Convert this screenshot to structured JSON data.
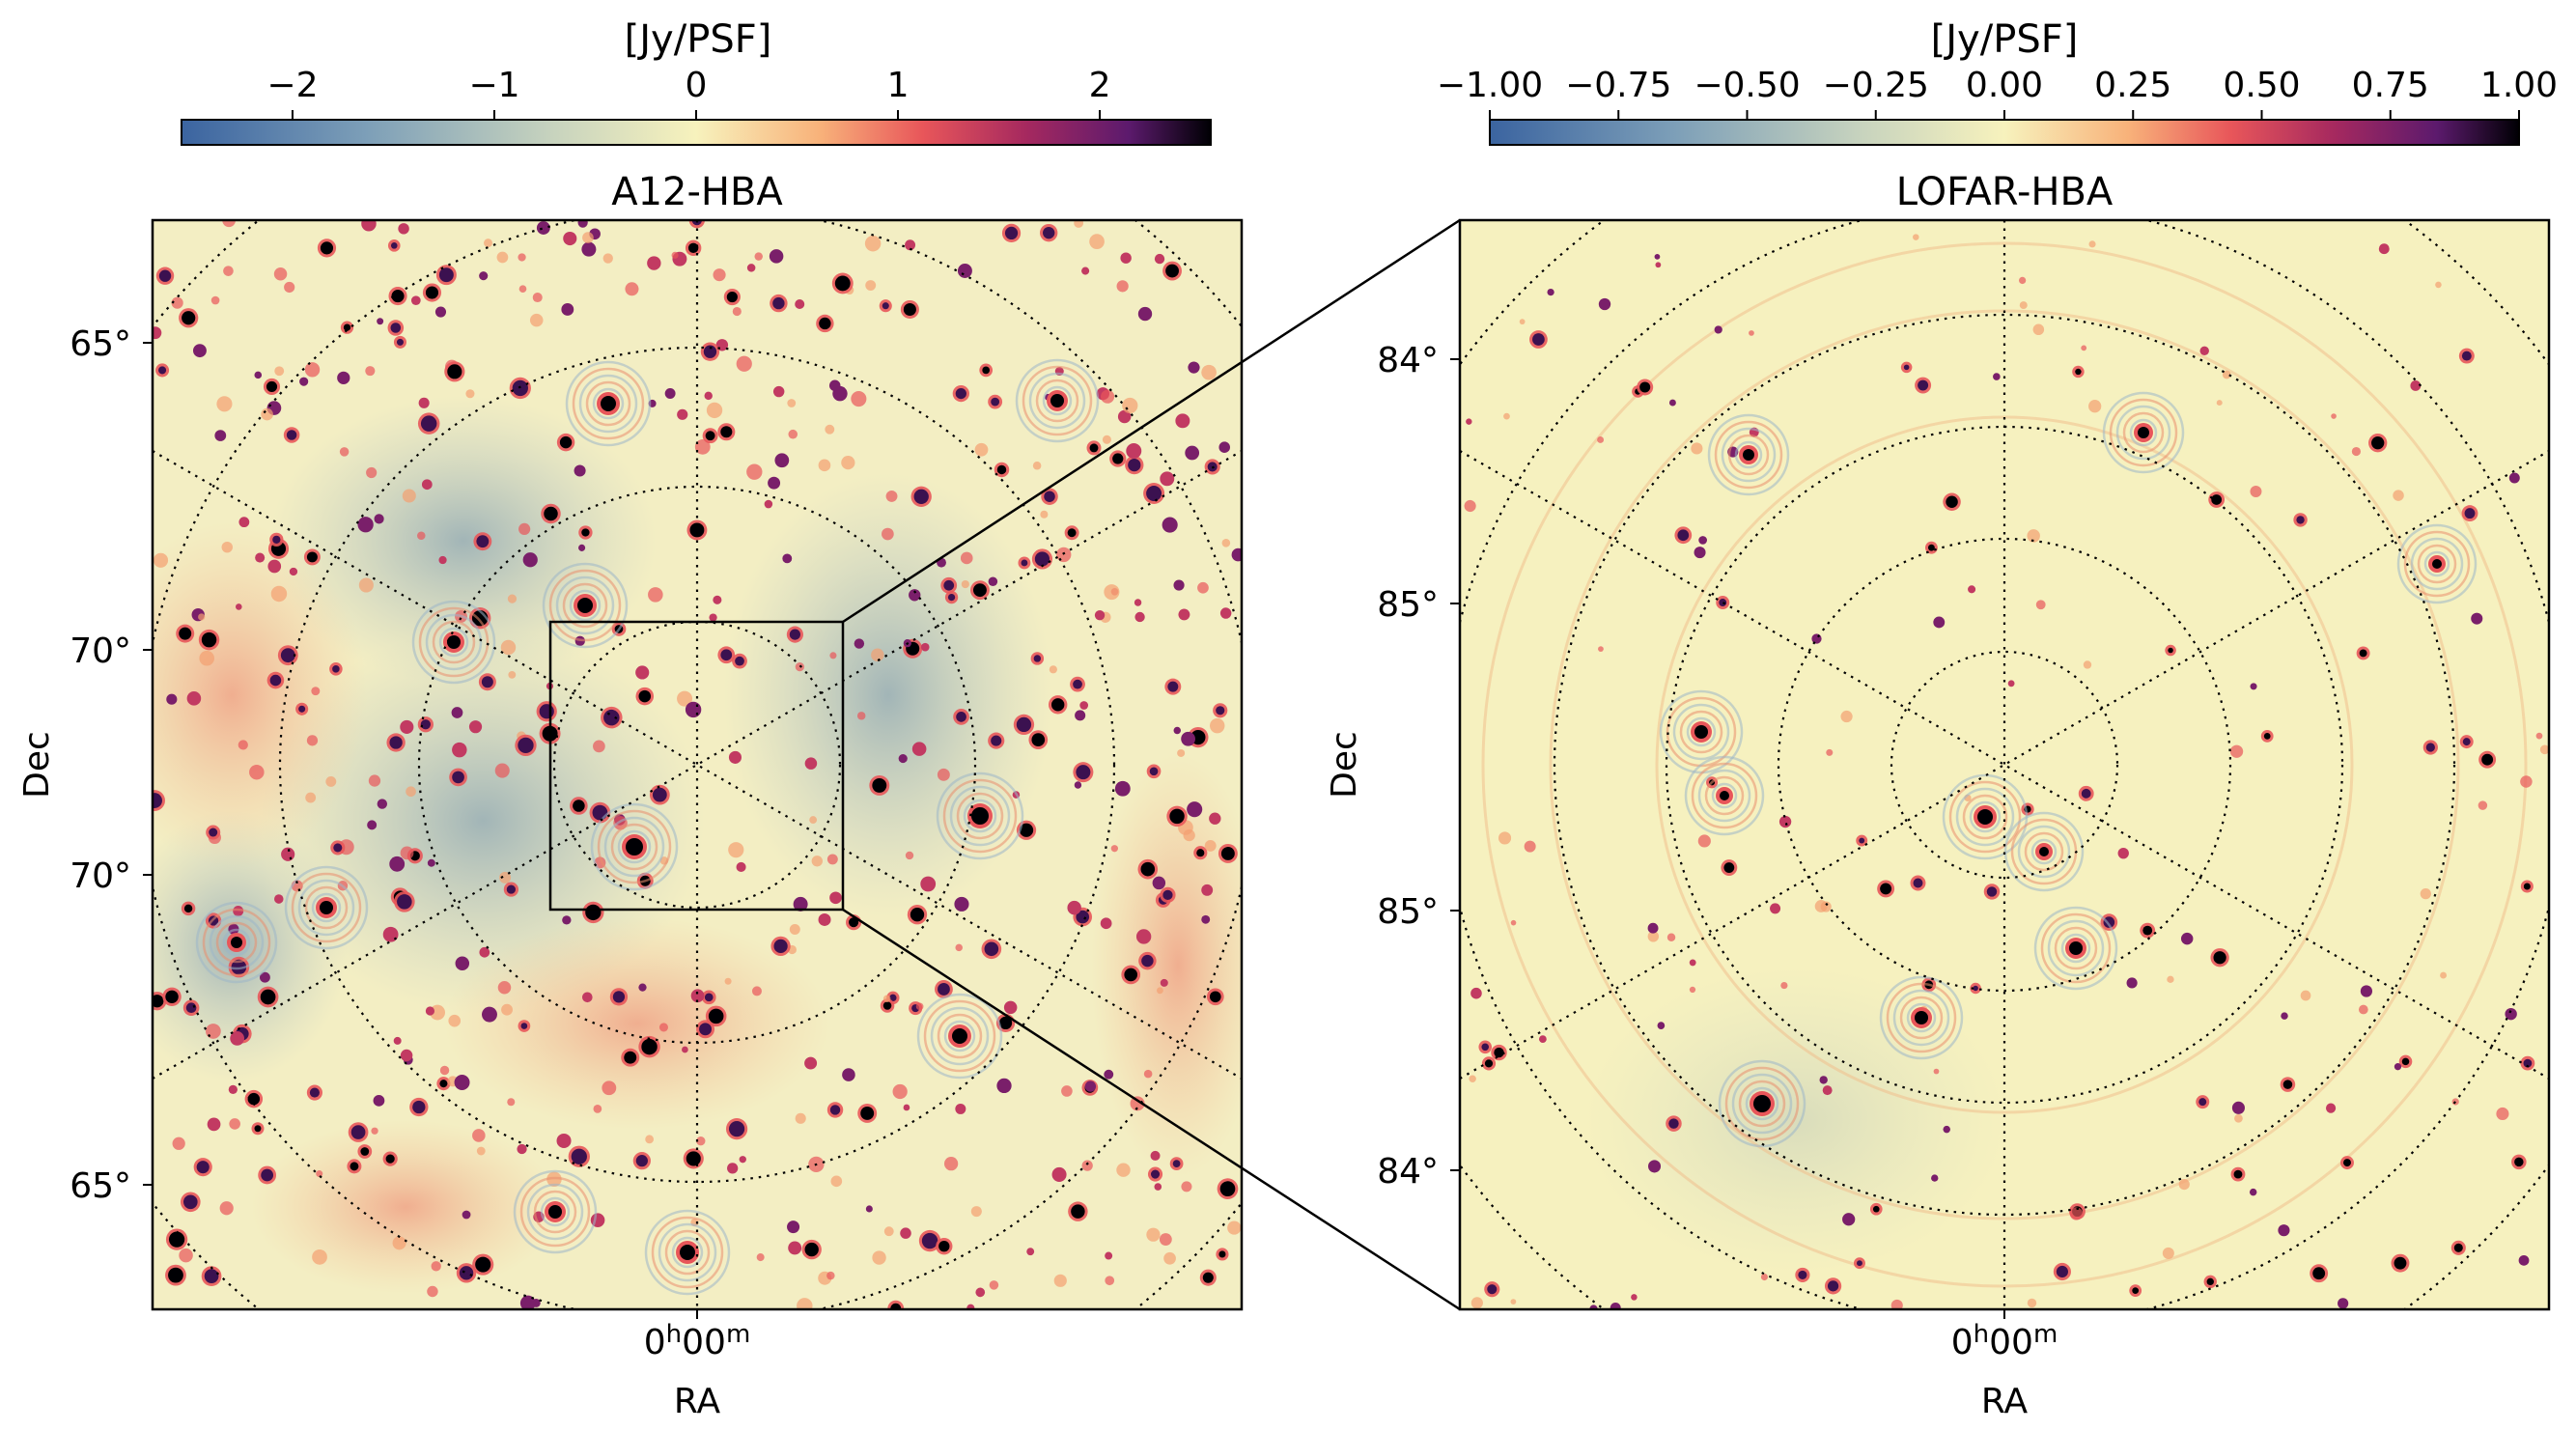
{
  "figure": {
    "left_panel": {
      "title": "A12-HBA",
      "colorbar": {
        "label": "[Jy/PSF]",
        "ticks": [
          "−2",
          "−1",
          "0",
          "1",
          "2"
        ],
        "tick_values": [
          -2,
          -1,
          0,
          1,
          2
        ],
        "range": [
          -2.55,
          2.55
        ]
      },
      "xlabel": "RA",
      "ylabel": "Dec",
      "ra_tick": "0h00m",
      "dec_ticks": [
        "65°",
        "70°",
        "70°",
        "65°"
      ]
    },
    "right_panel": {
      "title": "LOFAR-HBA",
      "colorbar": {
        "label": "[Jy/PSF]",
        "ticks": [
          "−1.00",
          "−0.75",
          "−0.50",
          "−0.25",
          "0.00",
          "0.25",
          "0.50",
          "0.75",
          "1.00"
        ],
        "tick_values": [
          -1.0,
          -0.75,
          -0.5,
          -0.25,
          0.0,
          0.25,
          0.5,
          0.75,
          1.0
        ],
        "range": [
          -1.0,
          1.0
        ]
      },
      "xlabel": "RA",
      "ylabel": "Dec",
      "ra_tick": "0h00m",
      "dec_ticks": [
        "84°",
        "85°",
        "85°",
        "84°"
      ]
    },
    "colormap": [
      "#3b64a0",
      "#7d9fb8",
      "#c7d3be",
      "#f7f2bd",
      "#f8b27a",
      "#e8565a",
      "#a6295f",
      "#5c1a6d",
      "#000004"
    ]
  }
}
